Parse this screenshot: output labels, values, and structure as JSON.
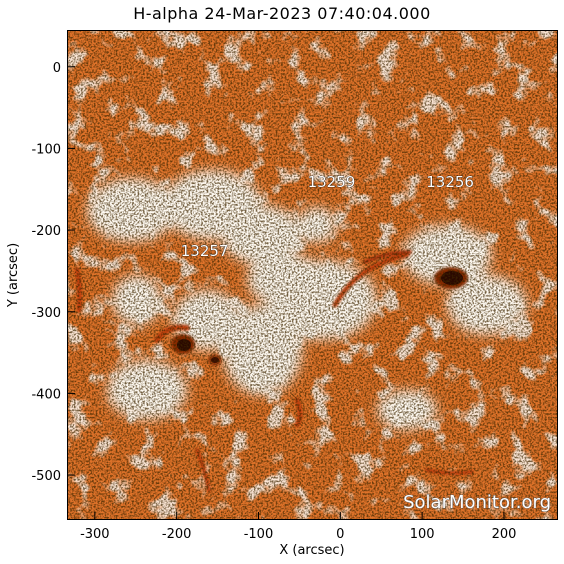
{
  "title": "H-alpha 24-Mar-2023 07:40:04.000",
  "axes": {
    "xlabel": "X (arcsec)",
    "ylabel": "Y (arcsec)",
    "x_ticks": [
      "-300",
      "-200",
      "-100",
      "0",
      "100",
      "200"
    ],
    "y_ticks": [
      "0",
      "-100",
      "-200",
      "-300",
      "-400",
      "-500"
    ],
    "xlim": [
      -334,
      266
    ],
    "ylim": [
      -555,
      45
    ]
  },
  "regions": [
    {
      "label": "13257",
      "x": -195,
      "y": -232
    },
    {
      "label": "13259",
      "x": -40,
      "y": -147
    },
    {
      "label": "13256",
      "x": 105,
      "y": -147
    }
  ],
  "watermark": "SolarMonitor.org",
  "colors": {
    "background": "#e0732a",
    "bright": "#fff6ea",
    "dark": "#3a0d00"
  }
}
